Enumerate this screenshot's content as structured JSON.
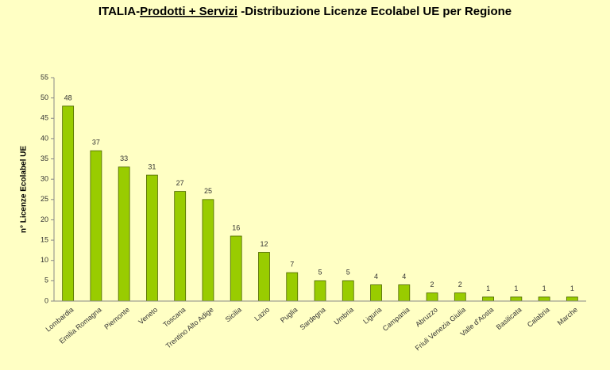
{
  "chart_data": {
    "type": "bar",
    "title_parts": [
      "ITALIA-",
      "Prodotti + Servizi",
      " -Distribuzione Licenze Ecolabel UE per Regione"
    ],
    "y_label": "n° Licenze  Ecolabel  UE",
    "categories": [
      "Lombardia",
      "Emilia Romagna",
      "Piemonte",
      "Veneto",
      "Toscana",
      "Trentino Alto Adige",
      "Sicilia",
      "Lazio",
      "Puglia",
      "Sardegna",
      "Umbria",
      "Liguria",
      "Campania",
      "Abruzzo",
      "Friuli Venezia Giulia",
      "Valle d'Aosta",
      "Basilicata",
      "Calabria",
      "Marche"
    ],
    "values": [
      48,
      37,
      33,
      31,
      27,
      25,
      16,
      12,
      7,
      5,
      5,
      4,
      4,
      2,
      2,
      1,
      1,
      1,
      1
    ],
    "color": "#99cc00",
    "ylim": [
      0,
      55
    ],
    "yticks": [
      0,
      5,
      10,
      15,
      20,
      25,
      30,
      35,
      40,
      45,
      50,
      55
    ]
  }
}
